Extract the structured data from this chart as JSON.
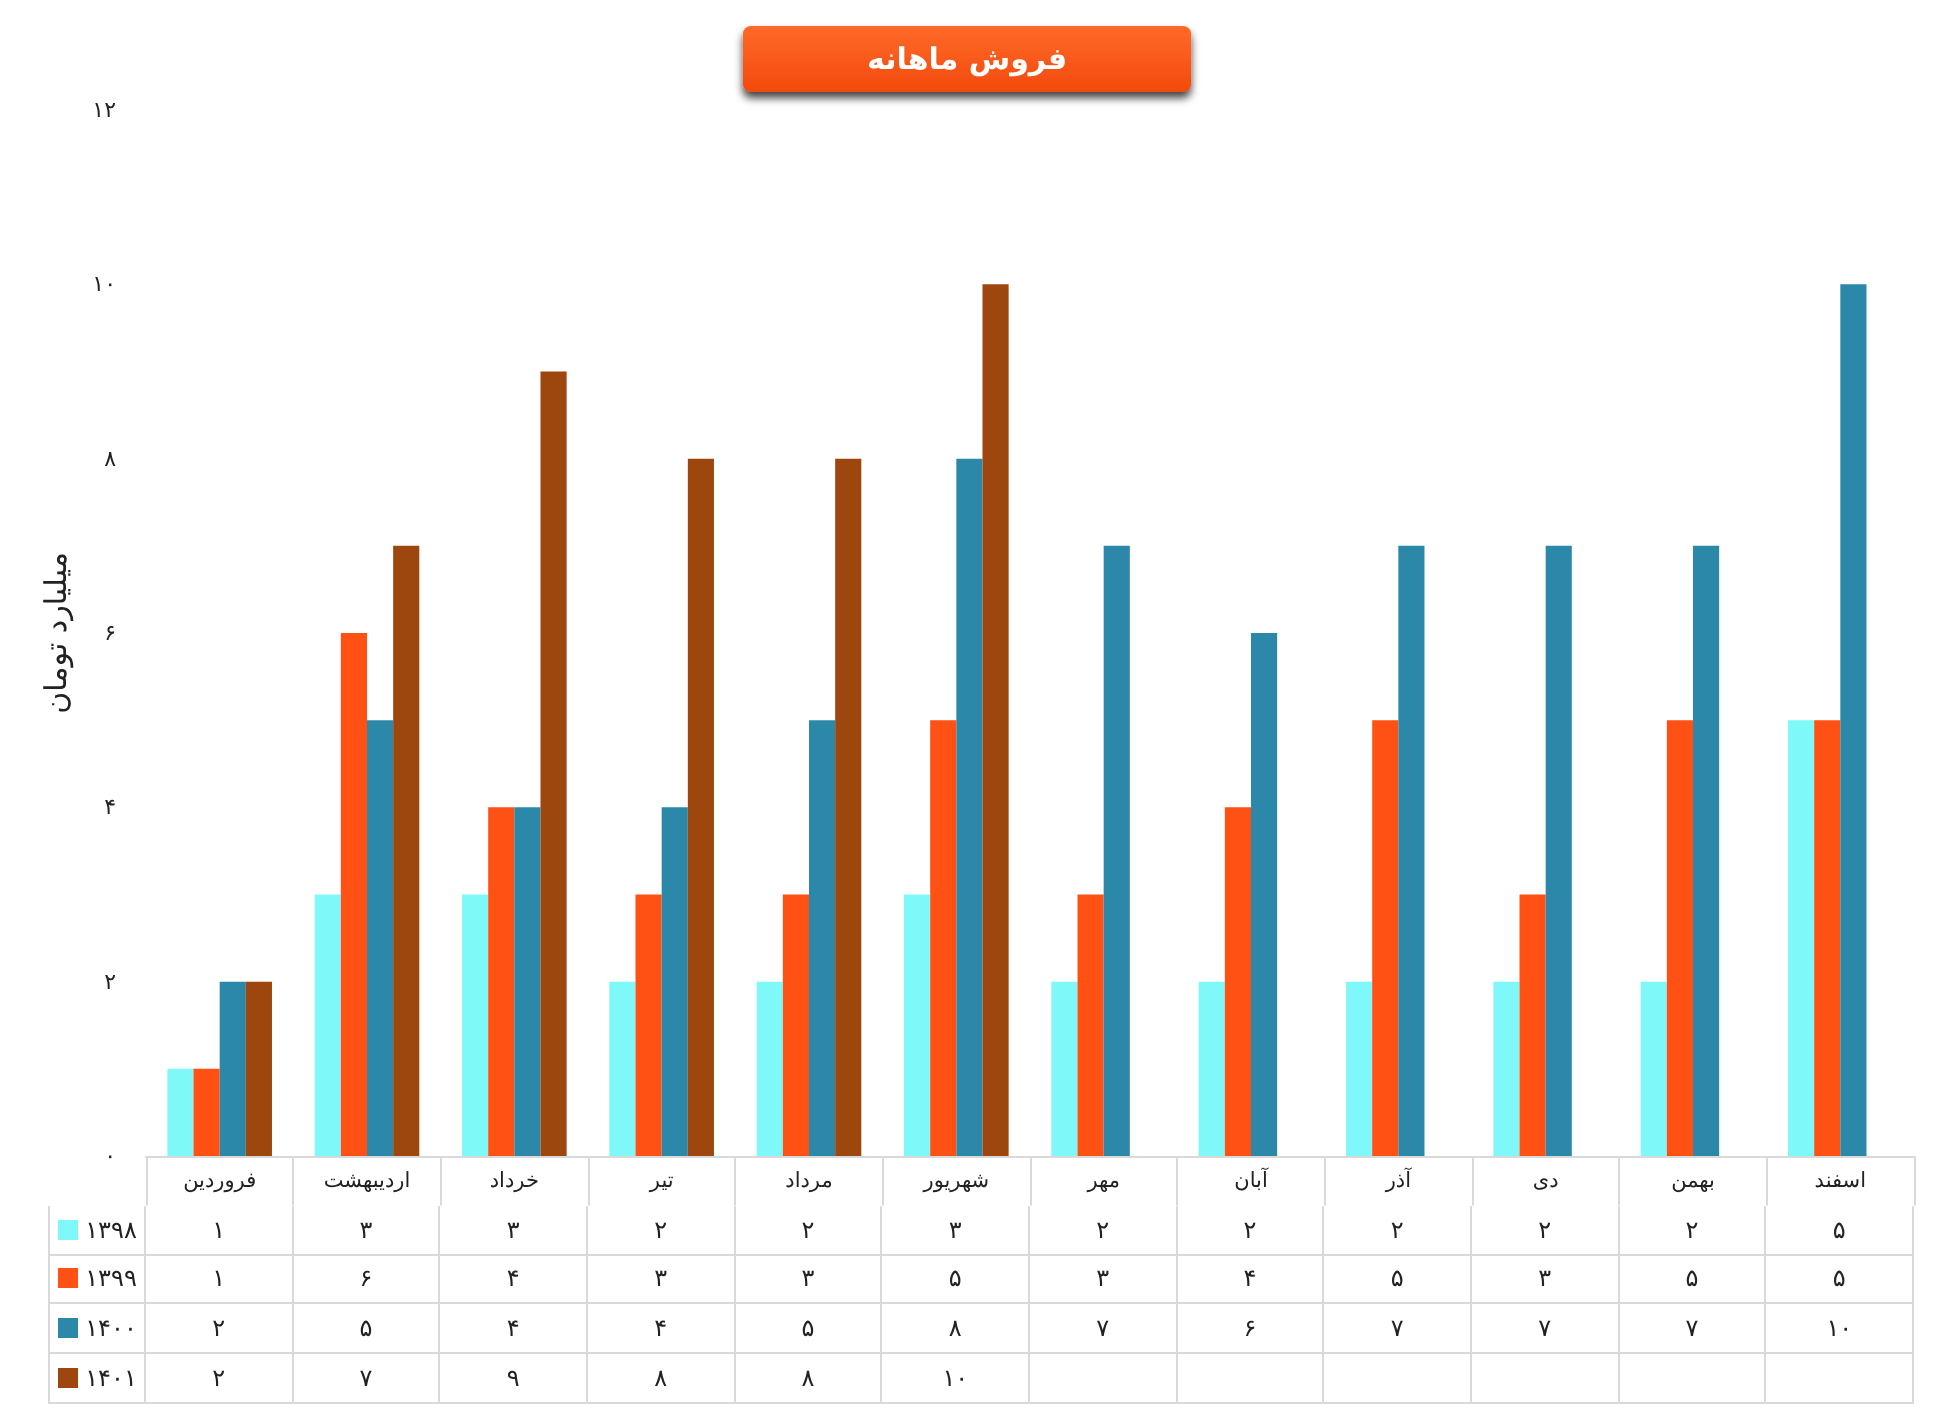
{
  "chart_data": {
    "type": "bar",
    "title": "فروش ماهانه",
    "ylabel": "میلیارد تومان",
    "categories": [
      "فروردین",
      "اردیبهشت",
      "خرداد",
      "تیر",
      "مرداد",
      "شهریور",
      "مهر",
      "آبان",
      "آذر",
      "دی",
      "بهمن",
      "اسفند"
    ],
    "series": [
      {
        "name": "۱۳۹۸",
        "color": "#7ff8fa",
        "values": [
          1,
          3,
          3,
          2,
          2,
          3,
          2,
          2,
          2,
          2,
          2,
          5
        ],
        "value_labels": [
          "۱",
          "۳",
          "۳",
          "۲",
          "۲",
          "۳",
          "۲",
          "۲",
          "۲",
          "۲",
          "۲",
          "۵"
        ]
      },
      {
        "name": "۱۳۹۹",
        "color": "#ff5113",
        "values": [
          1,
          6,
          4,
          3,
          3,
          5,
          3,
          4,
          5,
          3,
          5,
          5
        ],
        "value_labels": [
          "۱",
          "۶",
          "۴",
          "۳",
          "۳",
          "۵",
          "۳",
          "۴",
          "۵",
          "۳",
          "۵",
          "۵"
        ]
      },
      {
        "name": "۱۴۰۰",
        "color": "#2b88a8",
        "values": [
          2,
          5,
          4,
          4,
          5,
          8,
          7,
          6,
          7,
          7,
          7,
          10
        ],
        "value_labels": [
          "۲",
          "۵",
          "۴",
          "۴",
          "۵",
          "۸",
          "۷",
          "۶",
          "۷",
          "۷",
          "۷",
          "۱۰"
        ]
      },
      {
        "name": "۱۴۰۱",
        "color": "#9d470f",
        "values": [
          2,
          7,
          9,
          8,
          8,
          10,
          null,
          null,
          null,
          null,
          null,
          null
        ],
        "value_labels": [
          "۲",
          "۷",
          "۹",
          "۸",
          "۸",
          "۱۰",
          null,
          null,
          null,
          null,
          null,
          null
        ]
      }
    ],
    "ylim": [
      0,
      12
    ],
    "yticks": [
      {
        "value": 0,
        "label": "۰"
      },
      {
        "value": 2,
        "label": "۲"
      },
      {
        "value": 4,
        "label": "۴"
      },
      {
        "value": 6,
        "label": "۶"
      },
      {
        "value": 8,
        "label": "۸"
      },
      {
        "value": 10,
        "label": "۱۰"
      },
      {
        "value": 12,
        "label": "۱۲"
      }
    ],
    "legend": "bottom left"
  }
}
